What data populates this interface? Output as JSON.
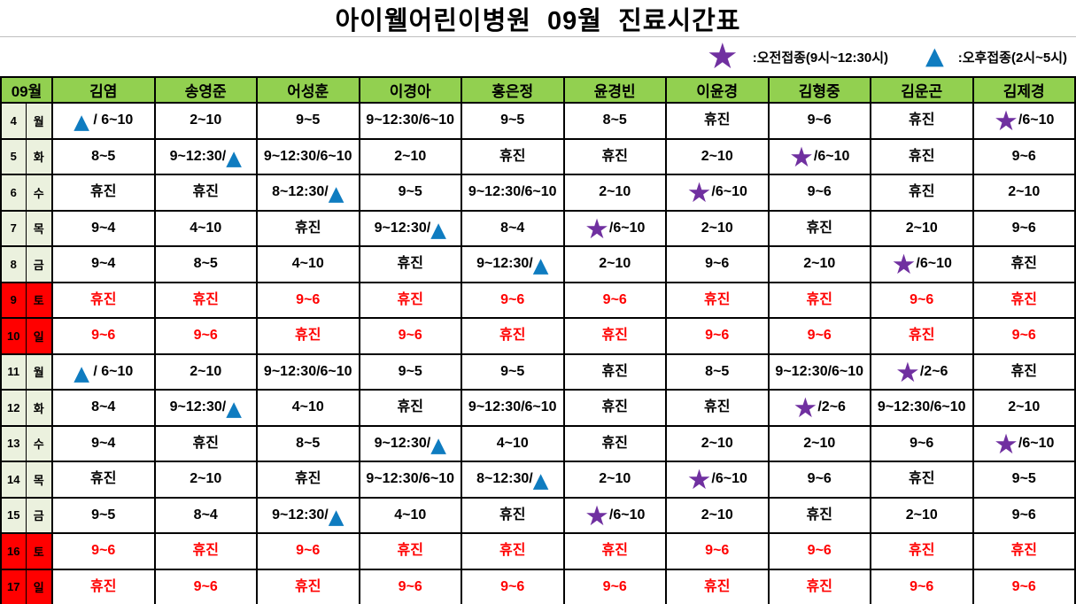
{
  "title": "아이웰어린이병원  09월  진료시간표",
  "legend": {
    "morning_icon": "star",
    "morning_label": ":오전접종(9시~12:30시)",
    "afternoon_icon": "triangle",
    "afternoon_label": ":오후접종(2시~5시)"
  },
  "colors": {
    "header_green": "#92D050",
    "day_cell_green": "#EBF1DE",
    "weekend_red": "#FF0000",
    "weekend_text_red": "#FF0000",
    "star_purple": "#7030A0",
    "triangle_blue": "#0F7CC0",
    "grid_black": "#000000"
  },
  "table": {
    "month_header": "09월",
    "doctors": [
      "김염",
      "송영준",
      "어성훈",
      "이경아",
      "홍은정",
      "윤경빈",
      "이윤경",
      "김형중",
      "김운곤",
      "김제경"
    ],
    "closed_label": "휴진",
    "rows": [
      {
        "date": "4",
        "day": "월",
        "weekend": false,
        "cells": [
          "▲ / 6~10",
          "2~10",
          "9~5",
          "9~12:30/6~10",
          "9~5",
          "8~5",
          "휴진",
          "9~6",
          "휴진",
          "★/6~10"
        ]
      },
      {
        "date": "5",
        "day": "화",
        "weekend": false,
        "cells": [
          "8~5",
          "9~12:30/▲",
          "9~12:30/6~10",
          "2~10",
          "휴진",
          "휴진",
          "2~10",
          "★/6~10",
          "휴진",
          "9~6"
        ]
      },
      {
        "date": "6",
        "day": "수",
        "weekend": false,
        "cells": [
          "휴진",
          "휴진",
          "8~12:30/▲",
          "9~5",
          "9~12:30/6~10",
          "2~10",
          "★/6~10",
          "9~6",
          "휴진",
          "2~10"
        ]
      },
      {
        "date": "7",
        "day": "목",
        "weekend": false,
        "cells": [
          "9~4",
          "4~10",
          "휴진",
          "9~12:30/▲",
          "8~4",
          "★/6~10",
          "2~10",
          "휴진",
          "2~10",
          "9~6"
        ]
      },
      {
        "date": "8",
        "day": "금",
        "weekend": false,
        "cells": [
          "9~4",
          "8~5",
          "4~10",
          "휴진",
          "9~12:30/▲",
          "2~10",
          "9~6",
          "2~10",
          "★/6~10",
          "휴진"
        ]
      },
      {
        "date": "9",
        "day": "토",
        "weekend": true,
        "cells": [
          "휴진",
          "휴진",
          "9~6",
          "휴진",
          "9~6",
          "9~6",
          "휴진",
          "휴진",
          "9~6",
          "휴진"
        ]
      },
      {
        "date": "10",
        "day": "일",
        "weekend": true,
        "cells": [
          "9~6",
          "9~6",
          "휴진",
          "9~6",
          "휴진",
          "휴진",
          "9~6",
          "9~6",
          "휴진",
          "9~6"
        ]
      },
      {
        "date": "11",
        "day": "월",
        "weekend": false,
        "cells": [
          "▲ / 6~10",
          "2~10",
          "9~12:30/6~10",
          "9~5",
          "9~5",
          "휴진",
          "8~5",
          "9~12:30/6~10",
          "★/2~6",
          "휴진"
        ]
      },
      {
        "date": "12",
        "day": "화",
        "weekend": false,
        "cells": [
          "8~4",
          "9~12:30/▲",
          "4~10",
          "휴진",
          "9~12:30/6~10",
          "휴진",
          "휴진",
          "★/2~6",
          "9~12:30/6~10",
          "2~10"
        ]
      },
      {
        "date": "13",
        "day": "수",
        "weekend": false,
        "cells": [
          "9~4",
          "휴진",
          "8~5",
          "9~12:30/▲",
          "4~10",
          "휴진",
          "2~10",
          "2~10",
          "9~6",
          "★/6~10"
        ]
      },
      {
        "date": "14",
        "day": "목",
        "weekend": false,
        "cells": [
          "휴진",
          "2~10",
          "휴진",
          "9~12:30/6~10",
          "8~12:30/▲",
          "2~10",
          "★/6~10",
          "9~6",
          "휴진",
          "9~5"
        ]
      },
      {
        "date": "15",
        "day": "금",
        "weekend": false,
        "cells": [
          "9~5",
          "8~4",
          "9~12:30/▲",
          "4~10",
          "휴진",
          "★/6~10",
          "2~10",
          "휴진",
          "2~10",
          "9~6"
        ]
      },
      {
        "date": "16",
        "day": "토",
        "weekend": true,
        "cells": [
          "9~6",
          "휴진",
          "9~6",
          "휴진",
          "휴진",
          "휴진",
          "9~6",
          "9~6",
          "휴진",
          "휴진"
        ]
      },
      {
        "date": "17",
        "day": "일",
        "weekend": true,
        "cells": [
          "휴진",
          "9~6",
          "휴진",
          "9~6",
          "9~6",
          "9~6",
          "휴진",
          "휴진",
          "9~6",
          "9~6"
        ]
      }
    ]
  }
}
